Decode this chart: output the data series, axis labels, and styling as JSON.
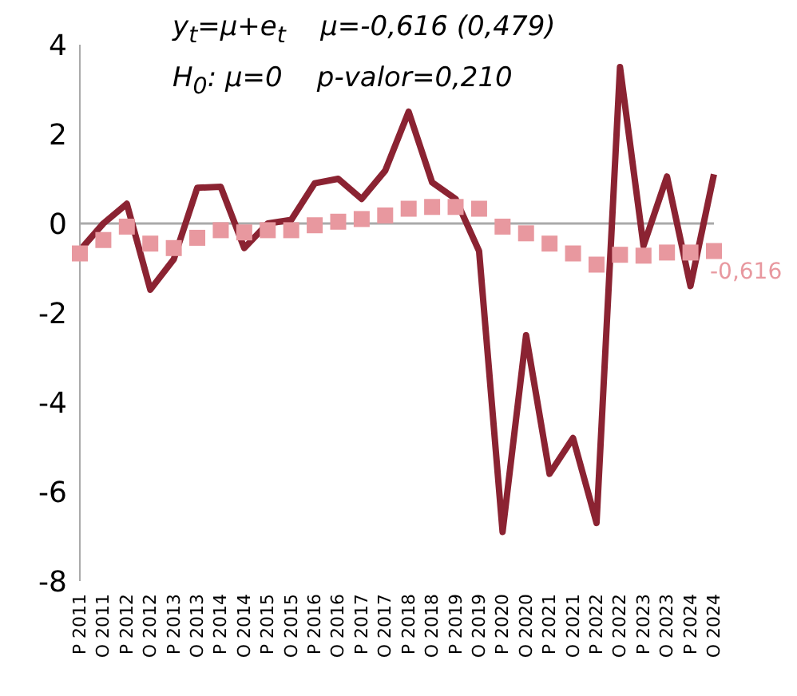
{
  "chart_data": {
    "type": "line",
    "annotations": [
      "y$_{t}$=μ+e$_{t}$    μ=-0,616 (0,479)",
      "H$_{0}$: μ=0    p-valor=0,210"
    ],
    "categories": [
      "P 2011",
      "O 2011",
      "P 2012",
      "O 2012",
      "P 2013",
      "O 2013",
      "P 2014",
      "O 2014",
      "P 2015",
      "O 2015",
      "P 2016",
      "O 2016",
      "P 2017",
      "O 2017",
      "P 2018",
      "O 2018",
      "P 2019",
      "O 2019",
      "P 2020",
      "O 2020",
      "P 2021",
      "O 2021",
      "P 2022",
      "O 2022",
      "P 2023",
      "O 2023",
      "P 2024",
      "O 2024"
    ],
    "series": [
      {
        "marker": "none",
        "color": "#8b2332",
        "values": [
          -0.6,
          0,
          0.44,
          -1.48,
          -0.8,
          0.8,
          0.82,
          -0.55,
          0,
          0.08,
          0.9,
          1.0,
          0.55,
          1.18,
          2.5,
          0.92,
          0.55,
          -0.62,
          -6.9,
          -2.5,
          -5.6,
          -4.8,
          -6.7,
          3.5,
          -0.5,
          1.05,
          -1.4,
          1.1
        ]
      },
      {
        "type": "scatter",
        "marker": "square",
        "color": "#e8989f",
        "values": [
          -0.67,
          -0.37,
          -0.07,
          -0.45,
          -0.55,
          -0.32,
          -0.15,
          -0.2,
          -0.15,
          -0.15,
          -0.04,
          0.04,
          0.1,
          0.18,
          0.33,
          0.37,
          0.37,
          0.33,
          -0.07,
          -0.22,
          -0.45,
          -0.67,
          -0.92,
          -0.7,
          -0.72,
          -0.65,
          -0.65,
          -0.616
        ],
        "value_labels": [
          null,
          null,
          null,
          null,
          null,
          null,
          null,
          null,
          null,
          null,
          null,
          null,
          null,
          null,
          null,
          null,
          null,
          null,
          null,
          null,
          null,
          null,
          null,
          null,
          null,
          null,
          null,
          "-0,616"
        ]
      }
    ],
    "ylim": [
      -8,
      4
    ],
    "yticks": [
      4,
      2,
      0,
      -2,
      -4,
      -6,
      -8
    ],
    "ref_lines": [
      {
        "axis": "y",
        "value": 0,
        "color": "#aaaaaa"
      }
    ]
  }
}
